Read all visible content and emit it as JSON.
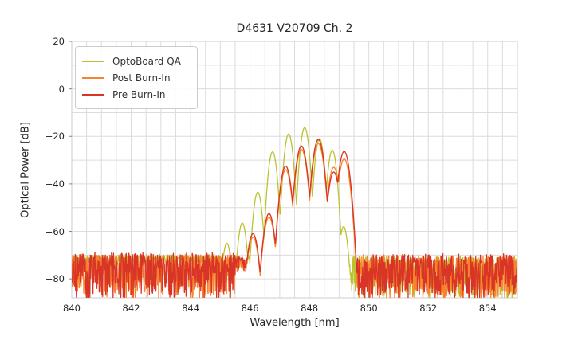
{
  "figure": {
    "background": "#ffffff",
    "text_color": "#262626"
  },
  "chart_data": {
    "type": "line",
    "title": "D4631 V20709 Ch. 2",
    "xlabel": "Wavelength [nm]",
    "ylabel": "Optical Power [dB]",
    "xlim": [
      840,
      855
    ],
    "ylim": [
      -88,
      20
    ],
    "xticks": [
      840,
      842,
      844,
      846,
      848,
      850,
      852,
      854
    ],
    "yticks": [
      20,
      0,
      -20,
      -40,
      -60,
      -80
    ],
    "grid": {
      "on": true,
      "x_step_nm": 0.5,
      "y_step_db": 10,
      "color": "#dcdcdc",
      "spine_color": "#d4d4d4"
    },
    "legend": {
      "position": "upper-left",
      "border_color": "#cccccc",
      "background": "#ffffff"
    },
    "series": [
      {
        "name": "OptoBoard QA",
        "color": "#bcc22d",
        "kind": "vcsel-mode-comb",
        "mode_sharpness_db_per_nm2": 430,
        "modes": [
          {
            "nm": 845.22,
            "peak_db": -65.0
          },
          {
            "nm": 845.74,
            "peak_db": -56.5
          },
          {
            "nm": 846.26,
            "peak_db": -43.5
          },
          {
            "nm": 846.76,
            "peak_db": -26.5
          },
          {
            "nm": 847.3,
            "peak_db": -19.0
          },
          {
            "nm": 847.84,
            "peak_db": -16.3
          },
          {
            "nm": 848.34,
            "peak_db": -21.0
          },
          {
            "nm": 848.77,
            "peak_db": -25.8
          },
          {
            "nm": 849.15,
            "peak_db": -58.0
          }
        ],
        "noise_segments": [
          {
            "from_nm": 840.0,
            "to_nm": 846.5,
            "top_db": -70.5,
            "spread_db": 3,
            "spike_exp": 1.6
          },
          {
            "from_nm": 849.28,
            "to_nm": 855.0,
            "top_db": -71.0,
            "spread_db": 17,
            "spike_exp": 1.8
          }
        ]
      },
      {
        "name": "Post Burn-In",
        "color": "#f8832b",
        "kind": "vcsel-mode-comb",
        "mode_sharpness_db_per_nm2": 280,
        "modes": [
          {
            "nm": 846.1,
            "peak_db": -62.5
          },
          {
            "nm": 846.64,
            "peak_db": -54.0
          },
          {
            "nm": 847.2,
            "peak_db": -34.0
          },
          {
            "nm": 847.73,
            "peak_db": -25.5
          },
          {
            "nm": 848.3,
            "peak_db": -23.0
          },
          {
            "nm": 848.82,
            "peak_db": -33.0
          },
          {
            "nm": 849.17,
            "peak_db": -29.5
          }
        ],
        "noise_segments": [
          {
            "from_nm": 840.0,
            "to_nm": 845.5,
            "top_db": -70.0,
            "spread_db": 18,
            "spike_exp": 1.6
          },
          {
            "from_nm": 845.5,
            "to_nm": 846.1,
            "top_db": -72.0,
            "spread_db": 5,
            "spike_exp": 1.6
          },
          {
            "from_nm": 849.6,
            "to_nm": 855.0,
            "top_db": -70.5,
            "spread_db": 18,
            "spike_exp": 1.6
          }
        ]
      },
      {
        "name": "Pre Burn-In",
        "color": "#d93527",
        "kind": "vcsel-mode-comb",
        "mode_sharpness_db_per_nm2": 280,
        "modes": [
          {
            "nm": 846.1,
            "peak_db": -61.0
          },
          {
            "nm": 846.64,
            "peak_db": -52.5
          },
          {
            "nm": 847.2,
            "peak_db": -32.5
          },
          {
            "nm": 847.73,
            "peak_db": -24.0
          },
          {
            "nm": 848.3,
            "peak_db": -21.3
          },
          {
            "nm": 848.82,
            "peak_db": -35.0
          },
          {
            "nm": 849.17,
            "peak_db": -26.3
          }
        ],
        "noise_segments": [
          {
            "from_nm": 840.0,
            "to_nm": 845.5,
            "top_db": -69.5,
            "spread_db": 19,
            "spike_exp": 1.5
          },
          {
            "from_nm": 845.5,
            "to_nm": 846.1,
            "top_db": -71.0,
            "spread_db": 6,
            "spike_exp": 1.6
          },
          {
            "from_nm": 849.6,
            "to_nm": 855.0,
            "top_db": -70.0,
            "spread_db": 19,
            "spike_exp": 1.5
          }
        ]
      }
    ]
  }
}
